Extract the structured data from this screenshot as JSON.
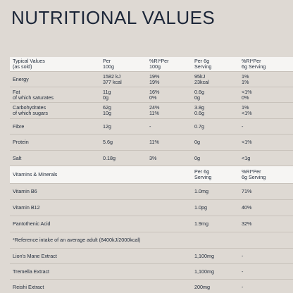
{
  "title": "NUTRITIONAL VALUES",
  "header": [
    "Typical Values\n(as sold)",
    "Per\n100g",
    "%RI*Per\n100g",
    "Per 6g\nServing",
    "%RI*Per\n6g Serving"
  ],
  "nutrients": [
    [
      "Energy",
      "1582 kJ\n377 kcal",
      "19%\n19%",
      "95kJ\n23kcal",
      "1%\n1%"
    ],
    [
      "Fat\nof which saturates",
      "11g\n0g",
      "16%\n0%",
      "0.6g\n0g",
      "<1%\n0%"
    ],
    [
      "Carbohydrates\nof which sugars",
      "62g\n10g",
      "24%\n11%",
      "3.8g\n0.6g",
      "1%\n<1%"
    ],
    [
      "Fibre",
      "12g",
      "-",
      "0.7g",
      "-"
    ],
    [
      "Protein",
      "5.6g",
      "11%",
      "0g",
      "<1%"
    ],
    [
      "Salt",
      "0.18g",
      "3%",
      "0g",
      "<1g"
    ]
  ],
  "vitamins_header": [
    "Vitamins & Minerals",
    "Per 6g\nServing",
    "%RI*Per\n6g Serving"
  ],
  "vitamins": [
    [
      "Vitamin B6",
      "1.0mg",
      "71%"
    ],
    [
      "Vitamin B12",
      "1.0pg",
      "40%"
    ],
    [
      "Pantothenic Acid",
      "1.9mg",
      "32%"
    ]
  ],
  "footnote": "*Reference intake of an average adult (8400kJ/2000kcal)",
  "extracts": [
    [
      "Lion's Mane Extract",
      "1,100mg",
      "-"
    ],
    [
      "Tremella Extract",
      "1,100mg",
      "-"
    ],
    [
      "Reishi Extract",
      "200mg",
      "-"
    ]
  ]
}
